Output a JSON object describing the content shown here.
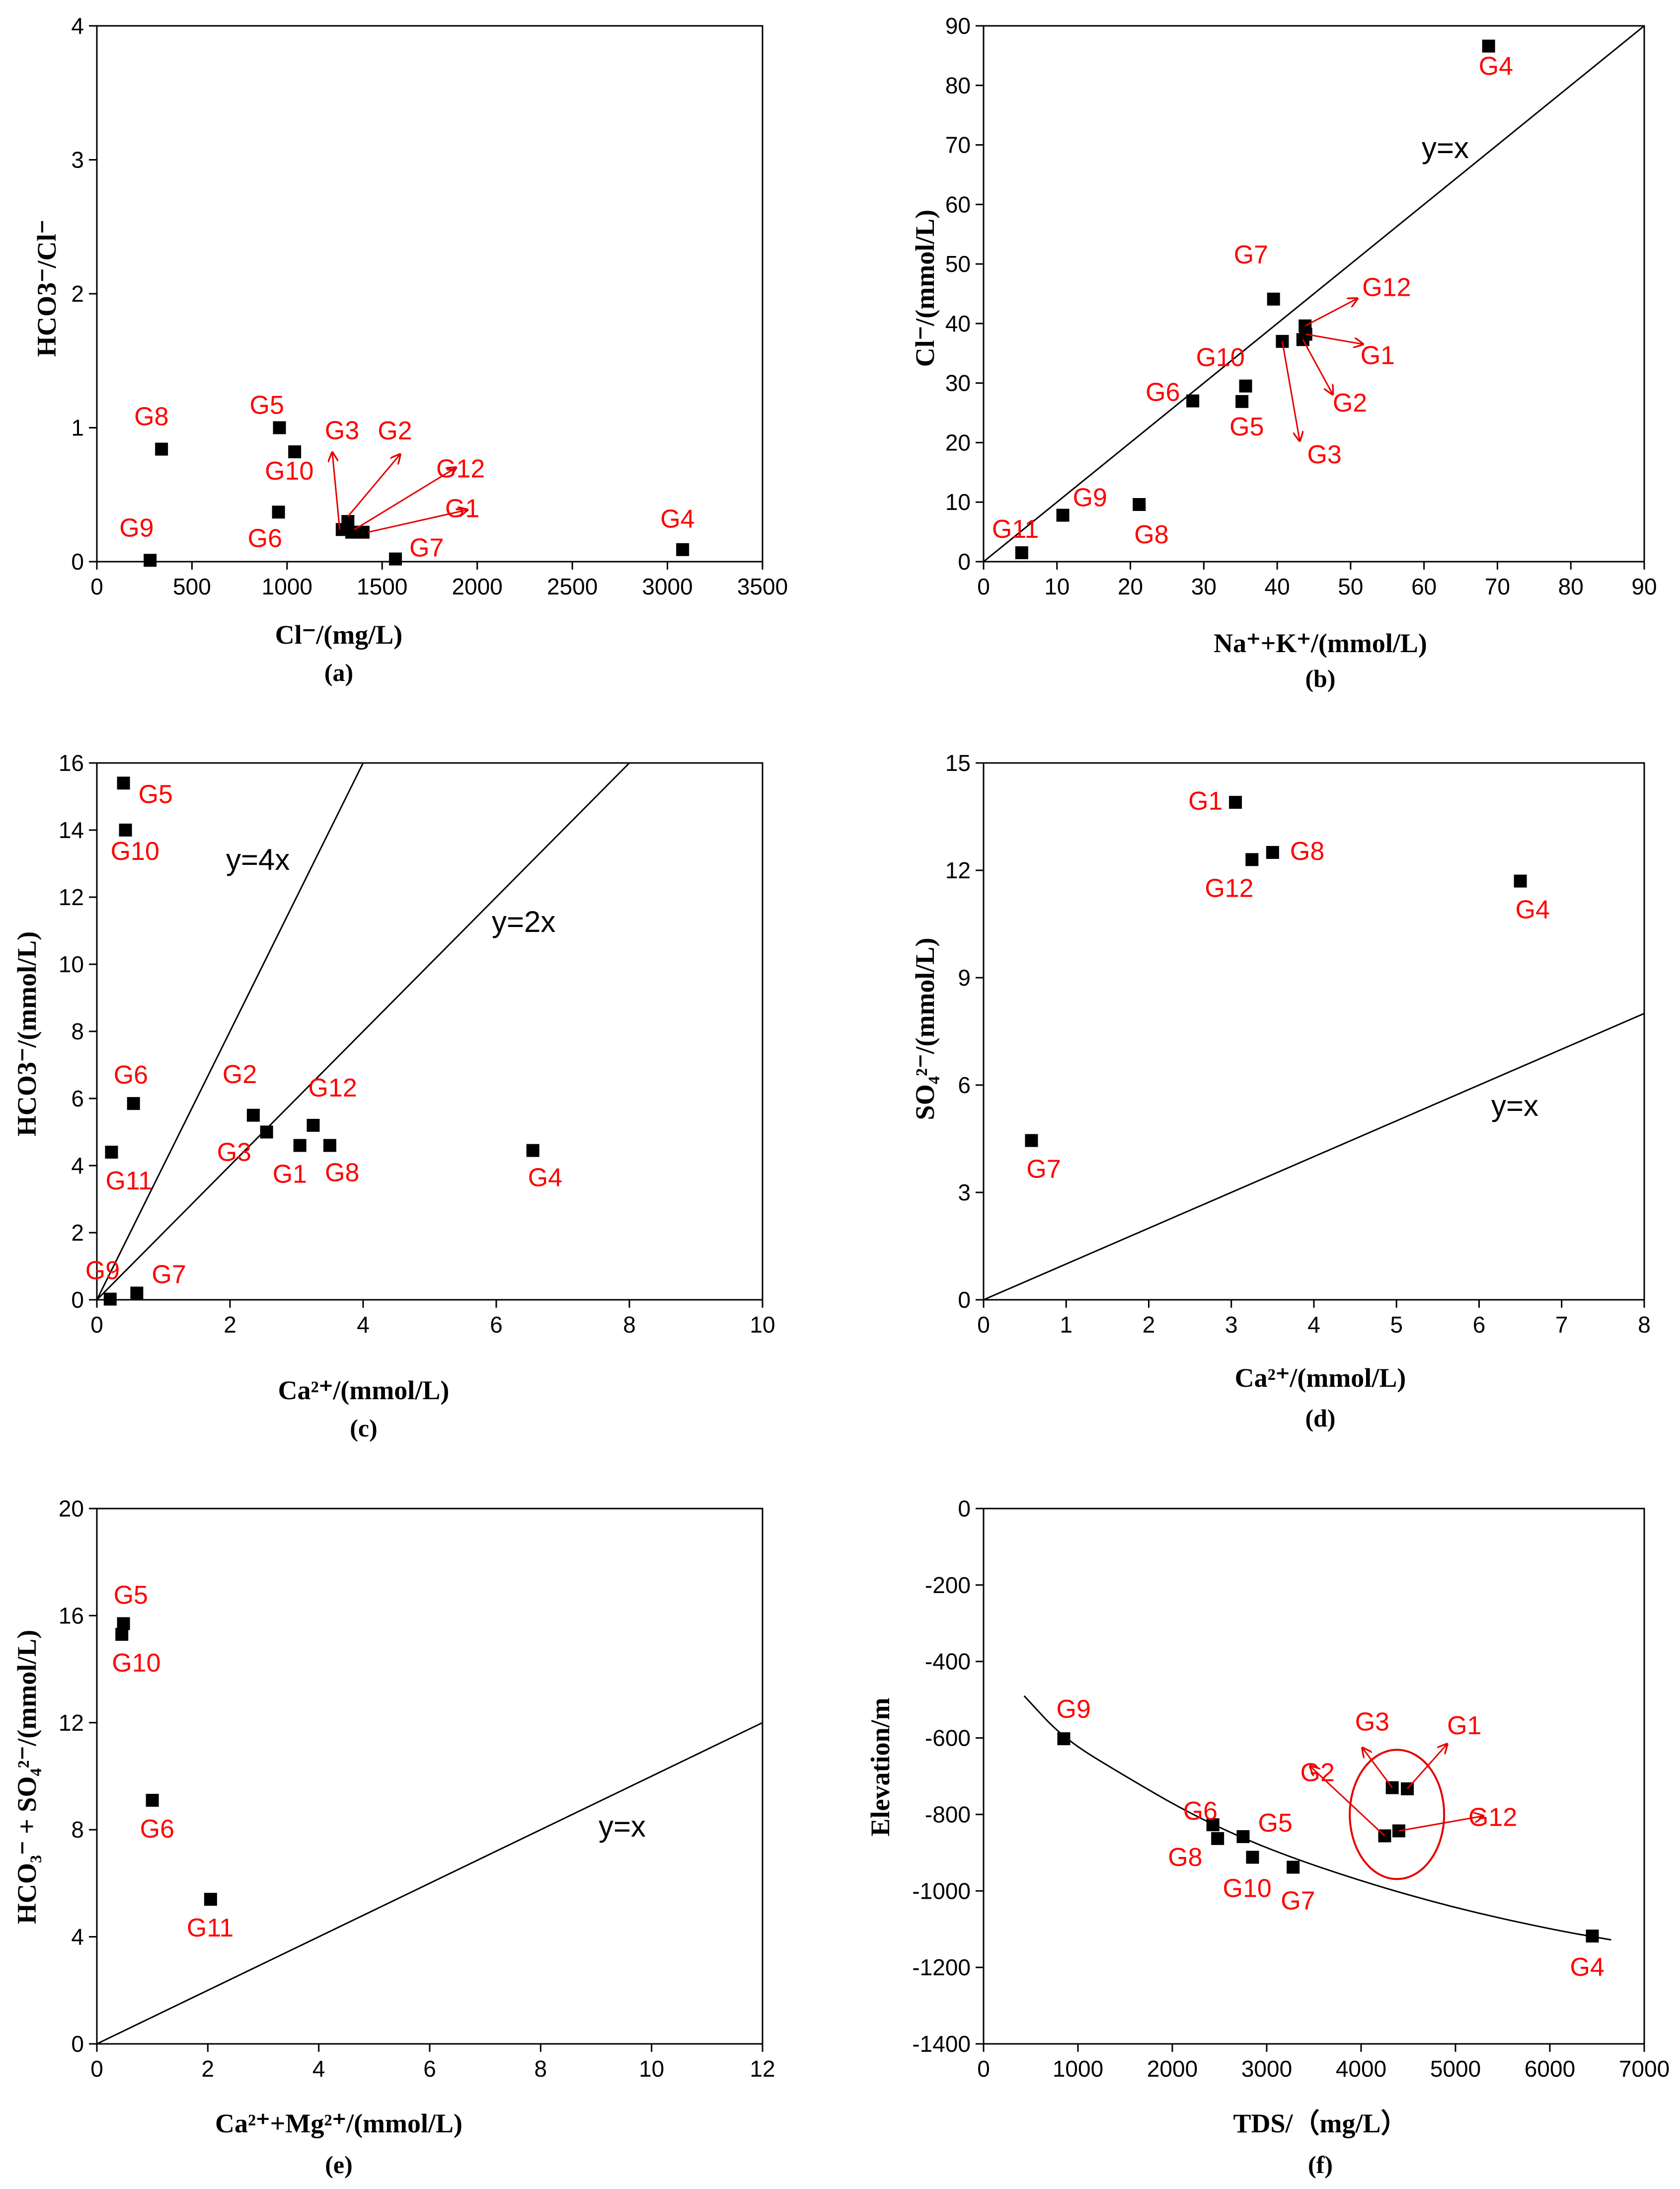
{
  "chart_data": [
    {
      "panel": "(a)",
      "type": "scatter",
      "xlabel": "Cl⁻/(mg/L)",
      "ylabel": "HCO3⁻/Cl⁻",
      "xlim": [
        0,
        3500
      ],
      "ylim": [
        0,
        4
      ],
      "xticks": [
        0,
        500,
        1000,
        1500,
        2000,
        2500,
        3000,
        3500
      ],
      "yticks": [
        0,
        1,
        2,
        3,
        4
      ],
      "points": [
        {
          "x": 340,
          "y": 0.84,
          "label": "G8"
        },
        {
          "x": 280,
          "y": 0.01,
          "label": "G9"
        },
        {
          "x": 960,
          "y": 1.0,
          "label": "G5"
        },
        {
          "x": 1040,
          "y": 0.82,
          "label": "G10"
        },
        {
          "x": 955,
          "y": 0.37,
          "label": "G6"
        },
        {
          "x": 1290,
          "y": 0.24,
          "label": "G3"
        },
        {
          "x": 1320,
          "y": 0.3,
          "label": "G2"
        },
        {
          "x": 1340,
          "y": 0.22,
          "label": "G12"
        },
        {
          "x": 1400,
          "y": 0.22,
          "label": "G1"
        },
        {
          "x": 1570,
          "y": 0.02,
          "label": "G7"
        },
        {
          "x": 3080,
          "y": 0.09,
          "label": "G4"
        }
      ]
    },
    {
      "panel": "(b)",
      "type": "scatter",
      "xlabel": "Na⁺+K⁺/(mmol/L)",
      "ylabel": "Cl⁻/(mmol/L)",
      "xlim": [
        0,
        90
      ],
      "ylim": [
        0,
        90
      ],
      "xticks": [
        0,
        10,
        20,
        30,
        40,
        50,
        60,
        70,
        80,
        90
      ],
      "yticks": [
        0,
        10,
        20,
        30,
        40,
        50,
        60,
        70,
        80,
        90
      ],
      "line_label": "y=x",
      "points": [
        {
          "x": 5.2,
          "y": 1.5,
          "label": "G11"
        },
        {
          "x": 10.8,
          "y": 7.8,
          "label": "G9"
        },
        {
          "x": 21.2,
          "y": 9.6,
          "label": "G8"
        },
        {
          "x": 28.5,
          "y": 27.0,
          "label": "G6"
        },
        {
          "x": 35.2,
          "y": 26.9,
          "label": "G5"
        },
        {
          "x": 35.7,
          "y": 29.5,
          "label": "G10"
        },
        {
          "x": 39.5,
          "y": 44.1,
          "label": "G7"
        },
        {
          "x": 40.7,
          "y": 37.0,
          "label": "G3"
        },
        {
          "x": 43.5,
          "y": 37.3,
          "label": "G2"
        },
        {
          "x": 43.9,
          "y": 38.2,
          "label": "G1"
        },
        {
          "x": 43.8,
          "y": 39.6,
          "label": "G12"
        },
        {
          "x": 68.8,
          "y": 86.6,
          "label": "G4"
        }
      ]
    },
    {
      "panel": "(c)",
      "type": "scatter",
      "xlabel": "Ca²⁺/(mmol/L)",
      "ylabel": "HCO3⁻/(mmol/L)",
      "xlim": [
        0,
        10
      ],
      "ylim": [
        0,
        16
      ],
      "xticks": [
        0,
        2,
        4,
        6,
        8,
        10
      ],
      "yticks": [
        0,
        2,
        4,
        6,
        8,
        10,
        12,
        14,
        16
      ],
      "line_labels": [
        "y=4x",
        "y=2x"
      ],
      "points": [
        {
          "x": 0.4,
          "y": 15.4,
          "label": "G5"
        },
        {
          "x": 0.43,
          "y": 14.0,
          "label": "G10"
        },
        {
          "x": 0.55,
          "y": 5.85,
          "label": "G6"
        },
        {
          "x": 0.22,
          "y": 4.4,
          "label": "G11"
        },
        {
          "x": 0.2,
          "y": 0.02,
          "label": "G9"
        },
        {
          "x": 0.6,
          "y": 0.2,
          "label": "G7"
        },
        {
          "x": 2.35,
          "y": 5.5,
          "label": "G2"
        },
        {
          "x": 2.55,
          "y": 5.0,
          "label": "G3"
        },
        {
          "x": 3.05,
          "y": 4.6,
          "label": "G1"
        },
        {
          "x": 3.25,
          "y": 5.2,
          "label": "G12"
        },
        {
          "x": 3.5,
          "y": 4.6,
          "label": "G8"
        },
        {
          "x": 6.55,
          "y": 4.45,
          "label": "G4"
        }
      ]
    },
    {
      "panel": "(d)",
      "type": "scatter",
      "xlabel": "Ca²⁺/(mmol/L)",
      "ylabel": "SO₄²⁻/(mmol/L)",
      "xlim": [
        0,
        8
      ],
      "ylim": [
        0,
        15
      ],
      "xticks": [
        0,
        1,
        2,
        3,
        4,
        5,
        6,
        7,
        8
      ],
      "yticks": [
        0,
        3,
        6,
        9,
        12,
        15
      ],
      "line_label": "y=x",
      "points": [
        {
          "x": 3.05,
          "y": 13.9,
          "label": "G1"
        },
        {
          "x": 3.25,
          "y": 12.3,
          "label": "G12"
        },
        {
          "x": 3.5,
          "y": 12.5,
          "label": "G8"
        },
        {
          "x": 6.5,
          "y": 11.7,
          "label": "G4"
        },
        {
          "x": 0.58,
          "y": 4.45,
          "label": "G7"
        }
      ]
    },
    {
      "panel": "(e)",
      "type": "scatter",
      "xlabel": "Ca²⁺+Mg²⁺/(mmol/L)",
      "ylabel": "HCO₃⁻ + SO₄²⁻/(mmol/L)",
      "xlim": [
        0,
        12
      ],
      "ylim": [
        0,
        20
      ],
      "xticks": [
        0,
        2,
        4,
        6,
        8,
        10,
        12
      ],
      "yticks": [
        0,
        4,
        8,
        12,
        16,
        20
      ],
      "line_label": "y=x",
      "points": [
        {
          "x": 0.48,
          "y": 15.7,
          "label": "G5"
        },
        {
          "x": 0.45,
          "y": 15.3,
          "label": "G10"
        },
        {
          "x": 1.0,
          "y": 9.1,
          "label": "G6"
        },
        {
          "x": 2.05,
          "y": 5.4,
          "label": "G11"
        }
      ]
    },
    {
      "panel": "(f)",
      "type": "scatter",
      "xlabel": "TDS/（mg/L）",
      "ylabel": "Elevation/m",
      "xlim": [
        0,
        7000
      ],
      "ylim": [
        -1400,
        0
      ],
      "xticks": [
        0,
        1000,
        2000,
        3000,
        4000,
        5000,
        6000,
        7000
      ],
      "yticks": [
        0,
        -200,
        -400,
        -600,
        -800,
        -1000,
        -1200,
        -1400
      ],
      "points": [
        {
          "x": 850,
          "y": -602,
          "label": "G9"
        },
        {
          "x": 2430,
          "y": -827,
          "label": "G6"
        },
        {
          "x": 2480,
          "y": -863,
          "label": "G8"
        },
        {
          "x": 2750,
          "y": -858,
          "label": "G5"
        },
        {
          "x": 2850,
          "y": -912,
          "label": "G10"
        },
        {
          "x": 3280,
          "y": -938,
          "label": "G7"
        },
        {
          "x": 4250,
          "y": -856,
          "label": "G2"
        },
        {
          "x": 4330,
          "y": -730,
          "label": "G3"
        },
        {
          "x": 4490,
          "y": -733,
          "label": "G1"
        },
        {
          "x": 4400,
          "y": -843,
          "label": "G12"
        },
        {
          "x": 6450,
          "y": -1118,
          "label": "G4"
        }
      ],
      "trend_curve": [
        {
          "x": 430,
          "y": -490
        },
        {
          "x": 850,
          "y": -602
        },
        {
          "x": 1500,
          "y": -700
        },
        {
          "x": 2200,
          "y": -800
        },
        {
          "x": 3000,
          "y": -890
        },
        {
          "x": 4000,
          "y": -975
        },
        {
          "x": 5000,
          "y": -1045
        },
        {
          "x": 6000,
          "y": -1100
        },
        {
          "x": 6650,
          "y": -1128
        }
      ]
    }
  ]
}
